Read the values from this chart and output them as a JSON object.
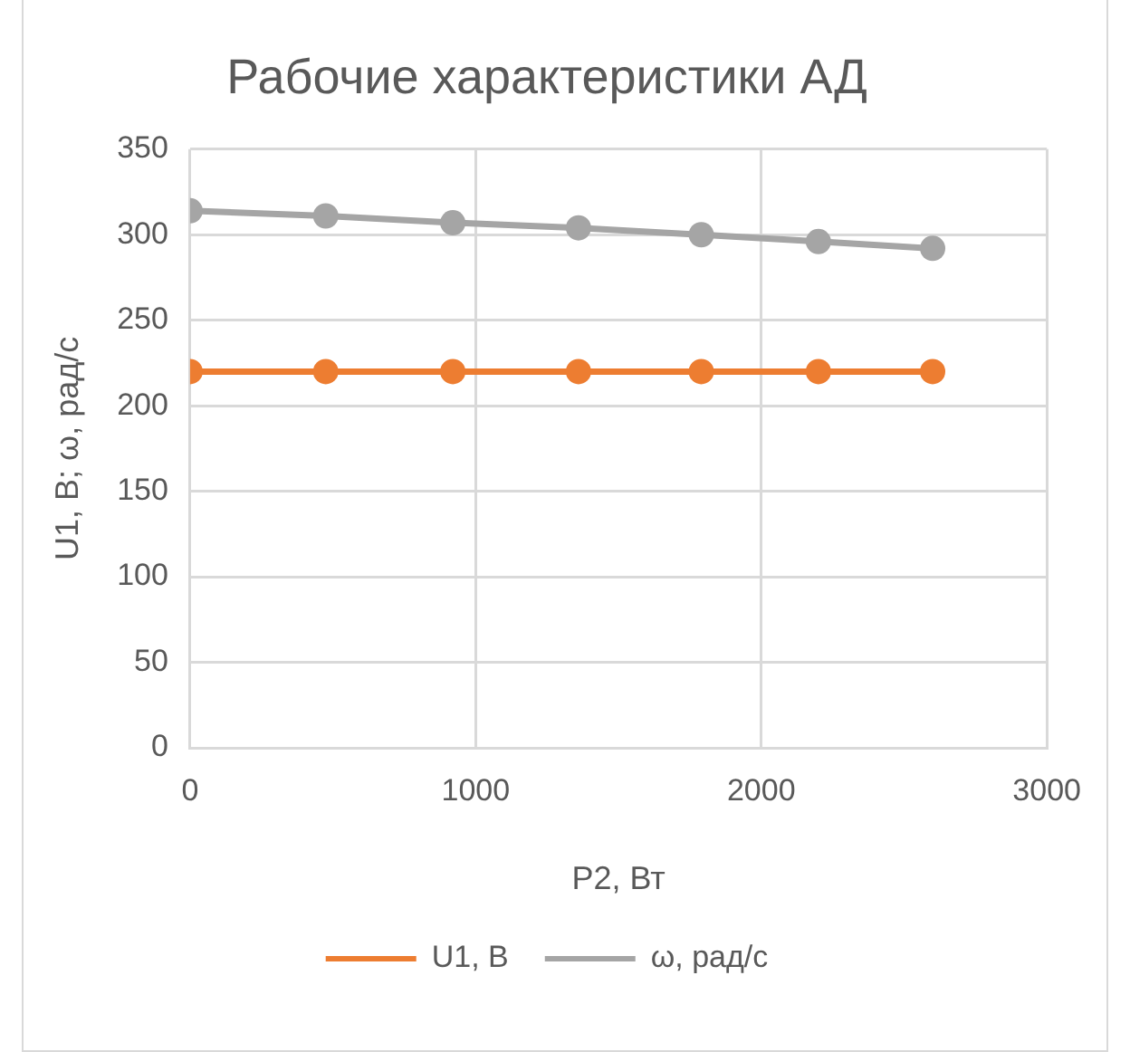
{
  "chart_data": {
    "type": "line",
    "title": "Рабочие характеристики АД",
    "xlabel": "P2, Вт",
    "ylabel": "U1, В; ω, рад/с",
    "x": [
      0,
      475,
      920,
      1360,
      1790,
      2200,
      2600
    ],
    "series": [
      {
        "name": "U1, В",
        "color": "#ed7d31",
        "values": [
          220,
          220,
          220,
          220,
          220,
          220,
          220
        ]
      },
      {
        "name": "ω, рад/с",
        "color": "#a5a5a5",
        "values": [
          314,
          311,
          307,
          304,
          300,
          296,
          292
        ]
      }
    ],
    "xlim": [
      0,
      3000
    ],
    "xticks": [
      0,
      1000,
      2000,
      3000
    ],
    "ylim": [
      0,
      350
    ],
    "yticks": [
      0,
      50,
      100,
      150,
      200,
      250,
      300,
      350
    ],
    "grid": true,
    "legend": "bottom",
    "marker": "circle",
    "line_style": "solid"
  }
}
